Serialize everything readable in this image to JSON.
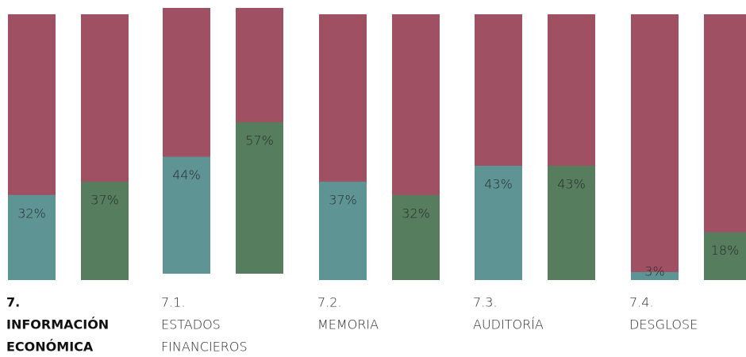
{
  "chart_data": {
    "type": "bar",
    "categories": [
      [
        "7.",
        "INFORMACIÓN",
        "ECONÓMICA"
      ],
      [
        "7.1.",
        "ESTADOS",
        "FINANCIEROS"
      ],
      [
        "7.2.",
        "MEMORIA"
      ],
      [
        "7.3.",
        "AUDITORÍA"
      ],
      [
        "7.4.",
        "DESGLOSE"
      ]
    ],
    "remainder_color": "#a05063",
    "series": [
      {
        "color": "#5f9494",
        "values": [
          32,
          44,
          37,
          43,
          3
        ],
        "value_labels": [
          "32%",
          "44%",
          "37%",
          "43%",
          "3%"
        ]
      },
      {
        "color": "#557d5e",
        "values": [
          37,
          57,
          32,
          43,
          18
        ],
        "value_labels": [
          "37%",
          "57%",
          "32%",
          "43%",
          "18%"
        ]
      }
    ],
    "ylim": [
      0,
      100
    ]
  }
}
